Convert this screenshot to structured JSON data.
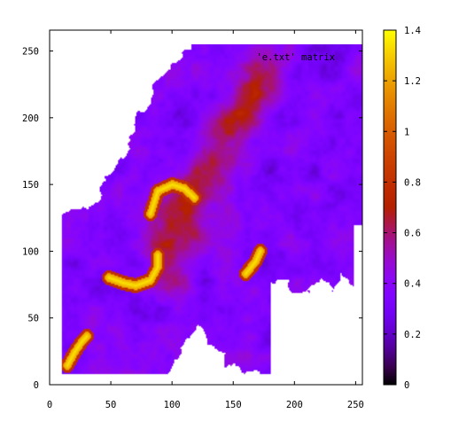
{
  "chart_data": {
    "type": "heatmap",
    "title": "",
    "xlabel": "",
    "ylabel": "",
    "xlim": [
      0,
      255
    ],
    "ylim": [
      0,
      255
    ],
    "x_ticks": [
      "0",
      "50",
      "100",
      "150",
      "200",
      "250"
    ],
    "x_tick_values": [
      0,
      50,
      100,
      150,
      200,
      250
    ],
    "y_ticks": [
      "0",
      "50",
      "100",
      "150",
      "200",
      "250"
    ],
    "y_tick_values": [
      0,
      50,
      100,
      150,
      200,
      250
    ],
    "legend_label": "'e.txt' matrix",
    "legend_position": "top-right",
    "color_scale": {
      "min": 0,
      "max": 1.4,
      "ticks": [
        "0",
        "0.2",
        "0.4",
        "0.6",
        "0.8",
        "1",
        "1.2",
        "1.4"
      ],
      "tick_values": [
        0,
        0.2,
        0.4,
        0.6,
        0.8,
        1.0,
        1.2,
        1.4
      ],
      "colormap": "gnuplot black-purple-red-orange-yellow"
    },
    "missing_value_color": "#ffffff",
    "features": {
      "background_level": 0.35,
      "ridge": [
        [
          175,
          235,
          0.72
        ],
        [
          160,
          210,
          0.7
        ],
        [
          140,
          180,
          0.68
        ],
        [
          115,
          140,
          0.66
        ],
        [
          105,
          110,
          0.72
        ],
        [
          95,
          90,
          0.64
        ]
      ],
      "hot_arcs": [
        {
          "points": [
            [
              82,
              128
            ],
            [
              88,
              145
            ],
            [
              100,
              150
            ],
            [
              110,
              147
            ],
            [
              118,
              140
            ]
          ],
          "value": 1.35
        },
        {
          "points": [
            [
              48,
              80
            ],
            [
              60,
              76
            ],
            [
              70,
              74
            ],
            [
              82,
              78
            ],
            [
              88,
              88
            ],
            [
              88,
              97
            ]
          ],
          "value": 1.35
        },
        {
          "points": [
            [
              14,
              14
            ],
            [
              20,
              24
            ],
            [
              26,
              32
            ],
            [
              30,
              36
            ]
          ],
          "value": 1.35
        },
        {
          "points": [
            [
              160,
              83
            ],
            [
              168,
              92
            ],
            [
              172,
              100
            ]
          ],
          "value": 1.35
        }
      ]
    }
  }
}
